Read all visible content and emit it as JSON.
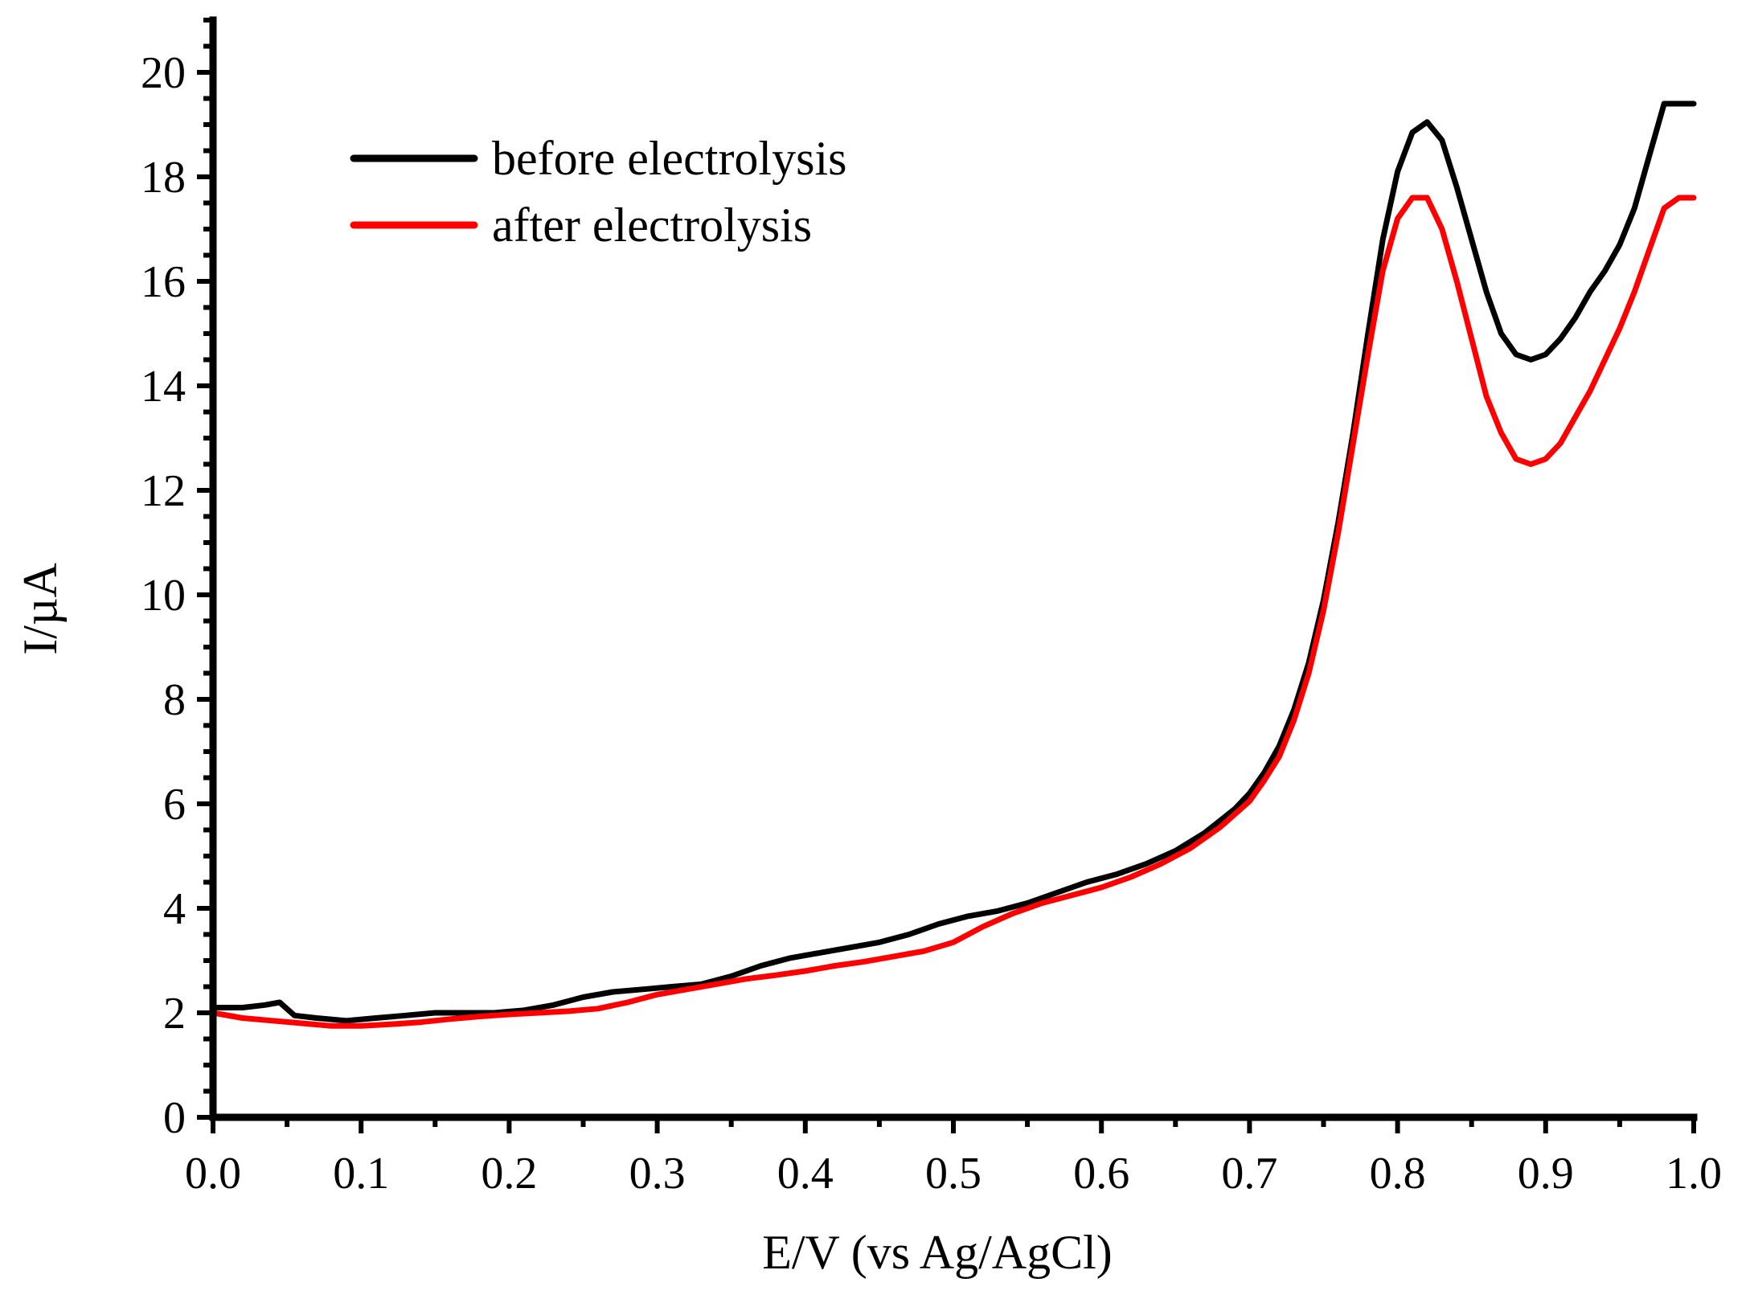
{
  "chart_data": {
    "type": "line",
    "title": "",
    "xlabel": "E/V (vs Ag/AgCl)",
    "ylabel": "I/µA",
    "xlim": [
      0.0,
      1.0
    ],
    "ylim": [
      0,
      21
    ],
    "x_ticks": [
      "0.0",
      "0.1",
      "0.2",
      "0.3",
      "0.4",
      "0.5",
      "0.6",
      "0.7",
      "0.8",
      "0.9",
      "1.0"
    ],
    "y_ticks": [
      "0",
      "2",
      "4",
      "6",
      "8",
      "10",
      "12",
      "14",
      "16",
      "18",
      "20"
    ],
    "legend_position": "top-left",
    "grid": false,
    "series": [
      {
        "name": "before electrolysis",
        "color": "#000000",
        "x": [
          0.0,
          0.02,
          0.035,
          0.045,
          0.055,
          0.07,
          0.09,
          0.11,
          0.13,
          0.15,
          0.17,
          0.19,
          0.21,
          0.23,
          0.25,
          0.27,
          0.29,
          0.31,
          0.33,
          0.35,
          0.37,
          0.39,
          0.41,
          0.43,
          0.45,
          0.47,
          0.49,
          0.51,
          0.53,
          0.55,
          0.57,
          0.59,
          0.61,
          0.63,
          0.65,
          0.67,
          0.69,
          0.7,
          0.71,
          0.72,
          0.73,
          0.74,
          0.75,
          0.76,
          0.77,
          0.78,
          0.79,
          0.8,
          0.81,
          0.82,
          0.83,
          0.84,
          0.85,
          0.86,
          0.87,
          0.88,
          0.89,
          0.9,
          0.91,
          0.92,
          0.93,
          0.94,
          0.95,
          0.96,
          0.97,
          0.98,
          0.99,
          1.0
        ],
        "y": [
          2.1,
          2.1,
          2.15,
          2.2,
          1.95,
          1.9,
          1.85,
          1.9,
          1.95,
          2.0,
          2.0,
          2.0,
          2.05,
          2.15,
          2.3,
          2.4,
          2.45,
          2.5,
          2.55,
          2.7,
          2.9,
          3.05,
          3.15,
          3.25,
          3.35,
          3.5,
          3.7,
          3.85,
          3.95,
          4.1,
          4.3,
          4.5,
          4.65,
          4.85,
          5.1,
          5.45,
          5.9,
          6.2,
          6.6,
          7.1,
          7.8,
          8.7,
          9.9,
          11.4,
          13.1,
          15.0,
          16.8,
          18.1,
          18.85,
          19.05,
          18.7,
          17.8,
          16.8,
          15.8,
          15.0,
          14.6,
          14.5,
          14.6,
          14.9,
          15.3,
          15.8,
          16.2,
          16.7,
          17.4,
          18.4,
          19.4,
          19.4,
          19.4
        ]
      },
      {
        "name": "after electrolysis",
        "color": "#ff0000",
        "x": [
          0.0,
          0.02,
          0.04,
          0.06,
          0.08,
          0.1,
          0.12,
          0.14,
          0.16,
          0.18,
          0.2,
          0.22,
          0.24,
          0.26,
          0.28,
          0.3,
          0.32,
          0.34,
          0.36,
          0.38,
          0.4,
          0.42,
          0.44,
          0.46,
          0.48,
          0.5,
          0.52,
          0.54,
          0.56,
          0.58,
          0.6,
          0.62,
          0.64,
          0.66,
          0.68,
          0.7,
          0.71,
          0.72,
          0.73,
          0.74,
          0.75,
          0.76,
          0.77,
          0.78,
          0.79,
          0.8,
          0.81,
          0.82,
          0.83,
          0.84,
          0.85,
          0.86,
          0.87,
          0.88,
          0.89,
          0.9,
          0.91,
          0.92,
          0.93,
          0.94,
          0.95,
          0.96,
          0.97,
          0.98,
          0.99,
          1.0
        ],
        "y": [
          2.0,
          1.9,
          1.85,
          1.8,
          1.75,
          1.75,
          1.78,
          1.82,
          1.88,
          1.93,
          1.97,
          2.0,
          2.03,
          2.08,
          2.2,
          2.35,
          2.45,
          2.55,
          2.65,
          2.72,
          2.8,
          2.9,
          2.98,
          3.08,
          3.18,
          3.35,
          3.65,
          3.9,
          4.1,
          4.25,
          4.4,
          4.6,
          4.85,
          5.15,
          5.55,
          6.05,
          6.45,
          6.9,
          7.6,
          8.5,
          9.7,
          11.2,
          12.9,
          14.6,
          16.2,
          17.2,
          17.6,
          17.6,
          17.0,
          16.0,
          14.9,
          13.8,
          13.1,
          12.6,
          12.5,
          12.6,
          12.9,
          13.4,
          13.9,
          14.5,
          15.1,
          15.8,
          16.6,
          17.4,
          17.6,
          17.6
        ]
      }
    ]
  }
}
